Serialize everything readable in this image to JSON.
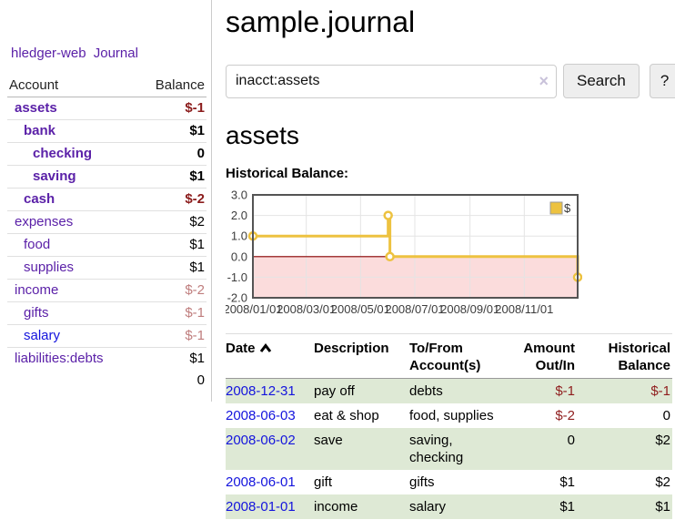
{
  "brand": "hledger-web",
  "nav": {
    "journal": "Journal"
  },
  "sidebar_table": {
    "headers": {
      "account": "Account",
      "balance": "Balance"
    },
    "rows": [
      {
        "account": "assets",
        "balance": "$-1",
        "indent": 1,
        "bold": true,
        "balance_style": "neg-strong"
      },
      {
        "account": "bank",
        "balance": "$1",
        "indent": 2,
        "bold": true,
        "balance_style": ""
      },
      {
        "account": "checking",
        "balance": "0",
        "indent": 3,
        "bold": true,
        "balance_style": ""
      },
      {
        "account": "saving",
        "balance": "$1",
        "indent": 3,
        "bold": true,
        "balance_style": ""
      },
      {
        "account": "cash",
        "balance": "$-2",
        "indent": 2,
        "bold": true,
        "balance_style": "neg-strong"
      },
      {
        "account": "expenses",
        "balance": "$2",
        "indent": 1,
        "bold": false,
        "balance_style": ""
      },
      {
        "account": "food",
        "balance": "$1",
        "indent": 2,
        "bold": false,
        "balance_style": ""
      },
      {
        "account": "supplies",
        "balance": "$1",
        "indent": 2,
        "bold": false,
        "balance_style": ""
      },
      {
        "account": "income",
        "balance": "$-2",
        "indent": 1,
        "bold": false,
        "balance_style": "neg-soft"
      },
      {
        "account": "gifts",
        "balance": "$-1",
        "indent": 2,
        "bold": false,
        "balance_style": "neg-soft"
      },
      {
        "account": "salary",
        "balance": "$-1",
        "indent": 2,
        "bold": false,
        "balance_style": "neg-soft",
        "link_color": "blue"
      },
      {
        "account": "liabilities:debts",
        "balance": "$1",
        "indent": 1,
        "bold": false,
        "balance_style": ""
      }
    ],
    "total": "0"
  },
  "header": {
    "title": "sample.journal"
  },
  "search": {
    "value": "inacct:assets",
    "clear_icon": "×",
    "button_label": "Search",
    "help_label": "?"
  },
  "account_view": {
    "heading": "assets",
    "chart_title": "Historical Balance:"
  },
  "chart_data": {
    "type": "line",
    "title": "Historical Balance of assets",
    "line_style": "steps",
    "series_name": "$",
    "series_color": "#edc240",
    "points": [
      {
        "date": "2008-01-01",
        "day": 0,
        "value": 1
      },
      {
        "date": "2008-06-01",
        "day": 152,
        "value": 2
      },
      {
        "date": "2008-06-03",
        "day": 154,
        "value": 0
      },
      {
        "date": "2008-12-31",
        "day": 365,
        "value": -1
      }
    ],
    "ylim": [
      -2,
      3
    ],
    "yticks": [
      3,
      2,
      1,
      0,
      -1,
      -2
    ],
    "xticks": [
      {
        "day": 0,
        "label": "2008/01/01"
      },
      {
        "day": 60,
        "label": "2008/03/01"
      },
      {
        "day": 121,
        "label": "2008/05/01"
      },
      {
        "day": 182,
        "label": "2008/07/01"
      },
      {
        "day": 244,
        "label": "2008/09/01"
      },
      {
        "day": 305,
        "label": "2008/11/01"
      }
    ],
    "xrange_days": 365,
    "grid": true,
    "legend_position": "top-right",
    "negative_fill": "#fbdcdc",
    "zero_line_color": "#8b0000"
  },
  "register": {
    "columns": {
      "date": "Date",
      "description": "Description",
      "accounts": "To/From Account(s)",
      "amount": "Amount Out/In",
      "balance": "Historical Balance"
    },
    "sort": "date-ascending",
    "rows": [
      {
        "date": "2008-12-31",
        "description": "pay off",
        "accounts": "debts",
        "amount": "$-1",
        "amount_neg": true,
        "balance": "$-1",
        "balance_neg": true
      },
      {
        "date": "2008-06-03",
        "description": "eat & shop",
        "accounts": "food, supplies",
        "amount": "$-2",
        "amount_neg": true,
        "balance": "0",
        "balance_neg": false
      },
      {
        "date": "2008-06-02",
        "description": "save",
        "accounts": "saving, checking",
        "amount": "0",
        "amount_neg": false,
        "balance": "$2",
        "balance_neg": false
      },
      {
        "date": "2008-06-01",
        "description": "gift",
        "accounts": "gifts",
        "amount": "$1",
        "amount_neg": false,
        "balance": "$2",
        "balance_neg": false
      },
      {
        "date": "2008-01-01",
        "description": "income",
        "accounts": "salary",
        "amount": "$1",
        "amount_neg": false,
        "balance": "$1",
        "balance_neg": false
      }
    ]
  }
}
